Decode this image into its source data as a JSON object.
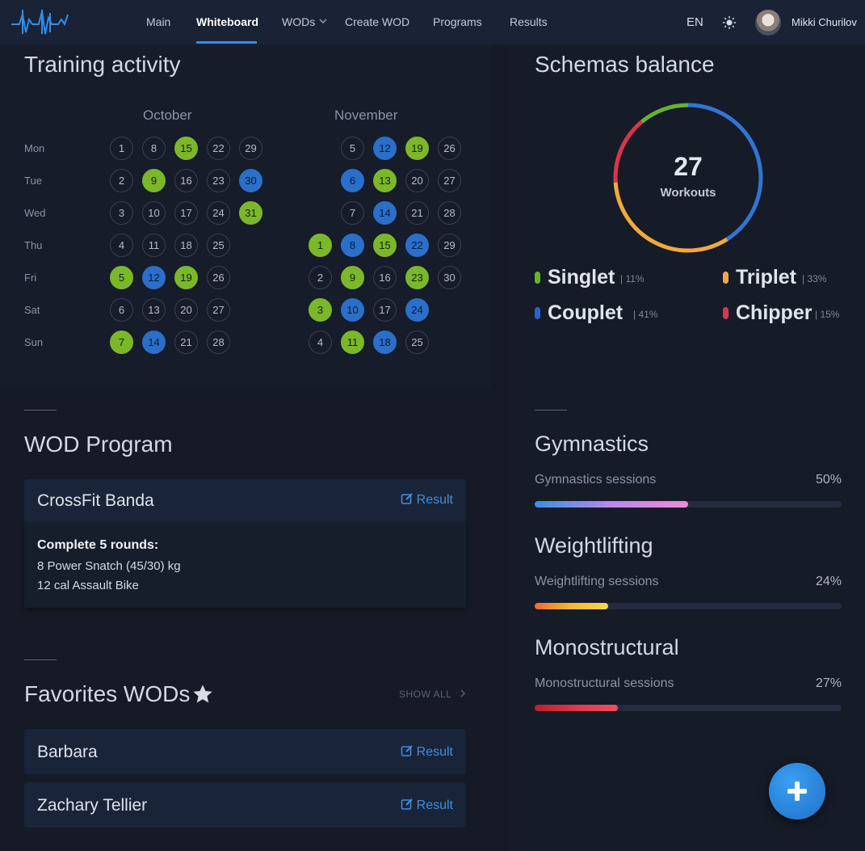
{
  "nav": {
    "items": [
      "Main",
      "Whiteboard",
      "WODs",
      "Create WOD",
      "Programs",
      "Results"
    ],
    "active": "Whiteboard",
    "language": "EN",
    "user_name": "Mikki Churilov",
    "icons": [
      "logo-icon",
      "chevron-down-icon",
      "sun-icon",
      "avatar"
    ]
  },
  "training_activity": {
    "title": "Training activity",
    "weekdays": [
      "Mon",
      "Tue",
      "Wed",
      "Thu",
      "Fri",
      "Sat",
      "Sun"
    ],
    "months": [
      {
        "name": "October",
        "weeks": [
          [
            {
              "d": "1"
            },
            {
              "d": "2"
            },
            {
              "d": "3"
            },
            {
              "d": "4"
            },
            {
              "d": "5",
              "s": "green"
            },
            {
              "d": "6"
            },
            {
              "d": "7",
              "s": "green"
            }
          ],
          [
            {
              "d": "8"
            },
            {
              "d": "9",
              "s": "green"
            },
            {
              "d": "10"
            },
            {
              "d": "11"
            },
            {
              "d": "12",
              "s": "blue"
            },
            {
              "d": "13"
            },
            {
              "d": "14",
              "s": "blue"
            }
          ],
          [
            {
              "d": "15",
              "s": "green"
            },
            {
              "d": "16"
            },
            {
              "d": "17"
            },
            {
              "d": "18"
            },
            {
              "d": "19",
              "s": "green"
            },
            {
              "d": "20"
            },
            {
              "d": "21"
            }
          ],
          [
            {
              "d": "22"
            },
            {
              "d": "23"
            },
            {
              "d": "24"
            },
            {
              "d": "25"
            },
            {
              "d": "26"
            },
            {
              "d": "27"
            },
            {
              "d": "28"
            }
          ],
          [
            {
              "d": "29"
            },
            {
              "d": "30",
              "s": "blue"
            },
            {
              "d": "31",
              "s": "green"
            },
            null,
            null,
            null,
            null
          ]
        ]
      },
      {
        "name": "November",
        "weeks": [
          [
            null,
            null,
            null,
            {
              "d": "1",
              "s": "green"
            },
            {
              "d": "2"
            },
            {
              "d": "3",
              "s": "green"
            },
            {
              "d": "4"
            }
          ],
          [
            {
              "d": "5"
            },
            {
              "d": "6",
              "s": "blue"
            },
            {
              "d": "7"
            },
            {
              "d": "8",
              "s": "blue"
            },
            {
              "d": "9",
              "s": "green"
            },
            {
              "d": "10",
              "s": "blue"
            },
            {
              "d": "11",
              "s": "green"
            }
          ],
          [
            {
              "d": "12",
              "s": "blue"
            },
            {
              "d": "13",
              "s": "green"
            },
            {
              "d": "14",
              "s": "blue"
            },
            {
              "d": "15",
              "s": "green"
            },
            {
              "d": "16"
            },
            {
              "d": "17"
            },
            {
              "d": "18",
              "s": "blue"
            }
          ],
          [
            {
              "d": "19",
              "s": "green"
            },
            {
              "d": "20"
            },
            {
              "d": "21"
            },
            {
              "d": "22",
              "s": "blue"
            },
            {
              "d": "23",
              "s": "green"
            },
            {
              "d": "24",
              "s": "blue"
            },
            {
              "d": "25"
            }
          ],
          [
            {
              "d": "26"
            },
            {
              "d": "27"
            },
            {
              "d": "28"
            },
            {
              "d": "29"
            },
            {
              "d": "30"
            },
            null,
            null
          ]
        ]
      }
    ],
    "status_colors": {
      "green": "#7ab82a",
      "blue": "#2a6fc9"
    }
  },
  "schemas_balance": {
    "title": "Schemas balance",
    "total": "27",
    "total_label": "Workouts",
    "legend": [
      {
        "name": "Singlet",
        "pct": "| 11%",
        "value": 11,
        "color": "#67b230"
      },
      {
        "name": "Triplet",
        "pct": "| 33%",
        "value": 33,
        "color": "#f2a93b"
      },
      {
        "name": "Couplet",
        "pct": "| 41%",
        "value": 41,
        "color": "#2c62c9"
      },
      {
        "name": "Chipper",
        "pct": "| 15%",
        "value": 15,
        "color": "#d9354c"
      }
    ],
    "ring_order": [
      {
        "value": 41,
        "color": "#2f76d4"
      },
      {
        "value": 33,
        "color": "#f2a93b"
      },
      {
        "value": 15,
        "color": "#d9354c"
      },
      {
        "value": 11,
        "color": "#67b230"
      }
    ]
  },
  "wod_program": {
    "title": "WOD Program",
    "card_title": "CrossFit Banda",
    "result_label": "Result",
    "lines": [
      "Complete 5 rounds:",
      "8 Power Snatch (45/30) kg",
      "12 cal Assault Bike"
    ]
  },
  "favorites": {
    "title": "Favorites WODs",
    "show_all": "SHOW ALL",
    "items": [
      {
        "name": "Barbara",
        "result_label": "Result"
      },
      {
        "name": "Zachary Tellier",
        "result_label": "Result"
      }
    ]
  },
  "sessions": [
    {
      "title": "Gymnastics",
      "label": "Gymnastics sessions",
      "pct": "50%",
      "value": 50,
      "gradient": [
        "#3a8ee6",
        "#b78be8",
        "#f08ad8"
      ]
    },
    {
      "title": "Weightlifting",
      "label": "Weightlifting sessions",
      "pct": "24%",
      "value": 24,
      "gradient": [
        "#f06b2a",
        "#f2b93b",
        "#f5d84a"
      ]
    },
    {
      "title": "Monostructural",
      "label": "Monostructural sessions",
      "pct": "27%",
      "value": 27,
      "gradient": [
        "#b8202e",
        "#e0384a",
        "#f0505c"
      ]
    }
  ],
  "fab": {
    "icon": "plus-icon"
  }
}
